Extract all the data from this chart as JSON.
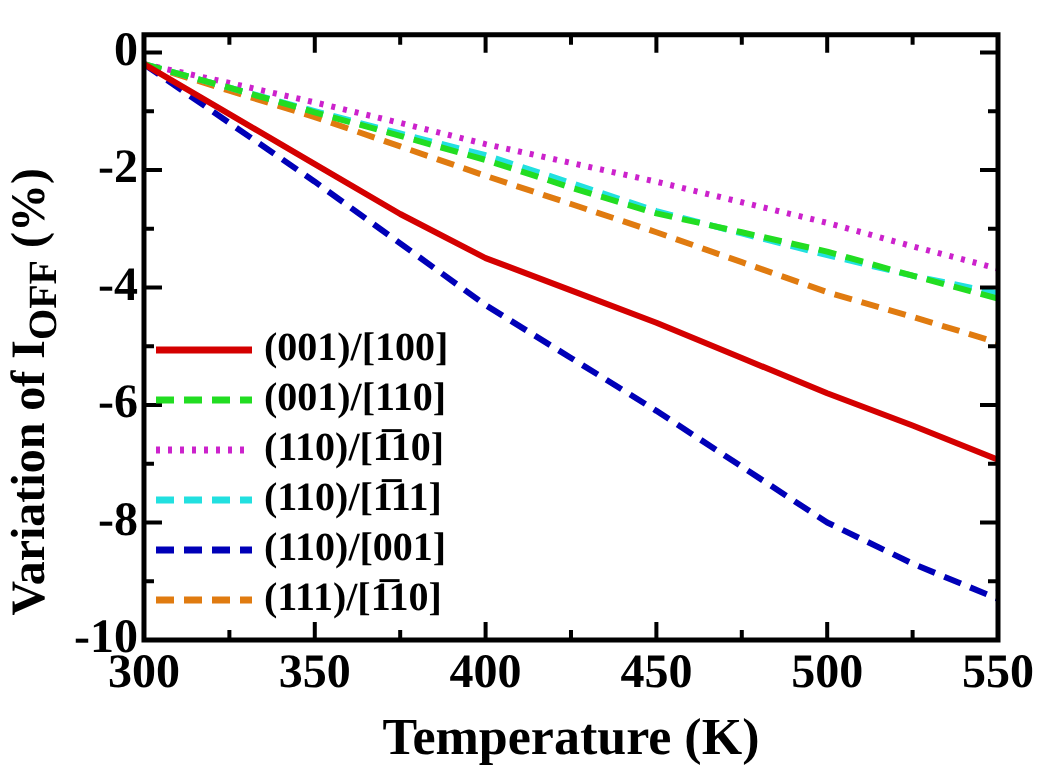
{
  "chart_data": {
    "type": "line",
    "xlabel": "Temperature (K)",
    "ylabel": "Variation of I$_{OFF}$ (%)",
    "x": [
      300,
      325,
      350,
      375,
      400,
      425,
      450,
      475,
      500,
      525,
      550
    ],
    "series": [
      {
        "name": "(001)/[100]",
        "color": "#d40000",
        "line_style": "solid",
        "values": [
          -0.2,
          -1.05,
          -1.9,
          -2.75,
          -3.5,
          -4.05,
          -4.6,
          -5.2,
          -5.8,
          -6.35,
          -6.93
        ]
      },
      {
        "name": "(001)/[110]",
        "color": "#22dd22",
        "line_style": "dashed",
        "values": [
          -0.2,
          -0.6,
          -1.02,
          -1.42,
          -1.83,
          -2.3,
          -2.74,
          -3.06,
          -3.39,
          -3.8,
          -4.19
        ]
      },
      {
        "name": "(110)/[1̅10]",
        "color": "#cc22cc",
        "line_style": "dotted",
        "values": [
          -0.2,
          -0.52,
          -0.85,
          -1.2,
          -1.56,
          -1.88,
          -2.2,
          -2.55,
          -2.9,
          -3.3,
          -3.68
        ]
      },
      {
        "name": "(110)/[1̅11]",
        "color": "#22e0e0",
        "line_style": "dashed",
        "values": [
          -0.2,
          -0.6,
          -1.0,
          -1.38,
          -1.75,
          -2.22,
          -2.7,
          -3.08,
          -3.45,
          -3.8,
          -4.1
        ]
      },
      {
        "name": "(110)/[001]",
        "color": "#0000b8",
        "line_style": "dashed",
        "values": [
          -0.2,
          -1.2,
          -2.2,
          -3.25,
          -4.3,
          -5.2,
          -6.1,
          -7.05,
          -8.0,
          -8.7,
          -9.3
        ]
      },
      {
        "name": "(111)/[1̅10]",
        "color": "#e07b10",
        "line_style": "dashed",
        "values": [
          -0.2,
          -0.65,
          -1.1,
          -1.6,
          -2.1,
          -2.58,
          -3.06,
          -3.57,
          -4.08,
          -4.5,
          -4.94
        ]
      }
    ],
    "xlim": [
      300,
      550
    ],
    "xticks": [
      300,
      {
        "value": 325,
        "label": null
      },
      350,
      {
        "value": 375,
        "label": null
      },
      400,
      {
        "value": 425,
        "label": null
      },
      450,
      {
        "value": 475,
        "label": null
      },
      500,
      {
        "value": 525,
        "label": null
      },
      550
    ],
    "ylim": [
      -10,
      0.3
    ],
    "yticks": [
      -10,
      {
        "value": -9,
        "label": null
      },
      -8,
      {
        "value": -7,
        "label": null
      },
      -6,
      {
        "value": -5,
        "label": null
      },
      -4,
      {
        "value": -3,
        "label": null
      },
      -2,
      {
        "value": -1,
        "label": null
      },
      0
    ],
    "grid": false,
    "legend": "bottom left",
    "marker": "none"
  }
}
